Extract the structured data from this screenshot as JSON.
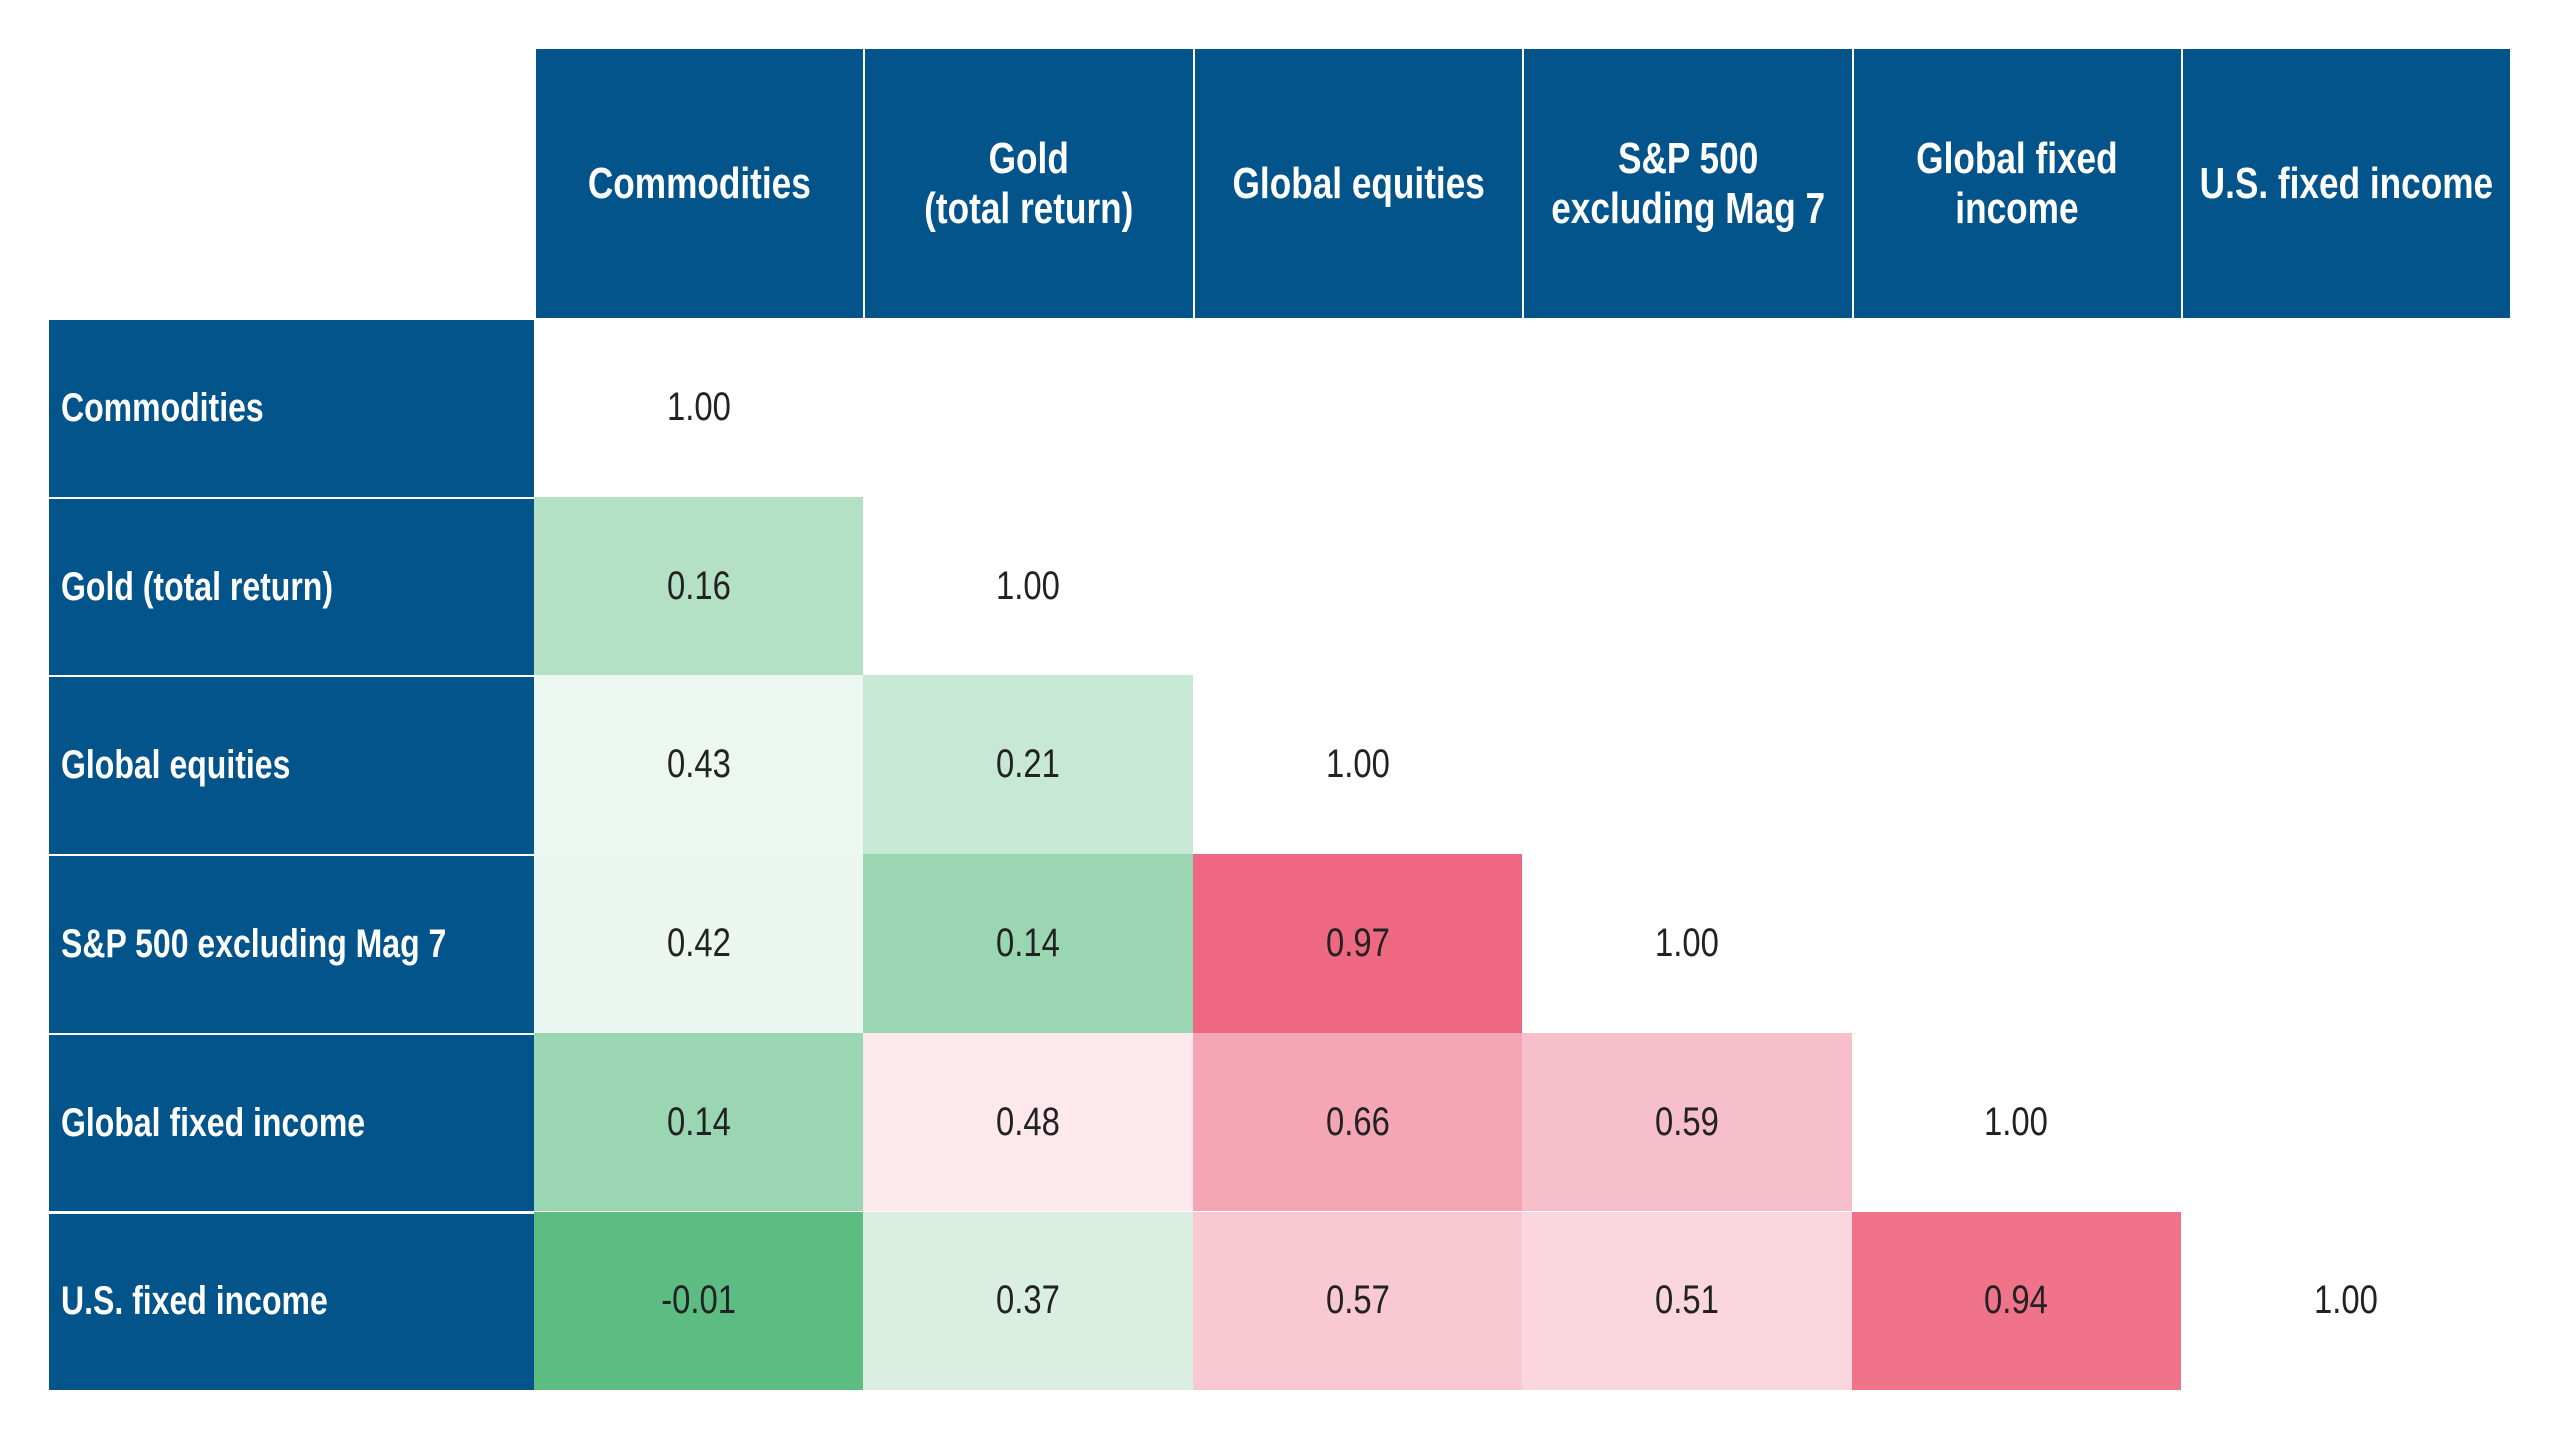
{
  "chart_data": {
    "type": "heatmap",
    "columns": [
      "Commodities",
      "Gold\n(total return)",
      "Global equities",
      "S&P 500\nexcluding Mag 7",
      "Global fixed\nincome",
      "U.S. fixed income"
    ],
    "rows": [
      "Commodities",
      "Gold (total return)",
      "Global equities",
      "S&P 500 excluding Mag 7",
      "Global fixed income",
      "U.S. fixed income"
    ],
    "values": [
      [
        1,
        null,
        null,
        null,
        null,
        null
      ],
      [
        0.16,
        1,
        null,
        null,
        null,
        null
      ],
      [
        0.43,
        0.21,
        1,
        null,
        null,
        null
      ],
      [
        0.42,
        0.14,
        0.97,
        1,
        null,
        null
      ],
      [
        0.14,
        0.48,
        0.66,
        0.59,
        1,
        null
      ],
      [
        -0.01,
        0.37,
        0.57,
        0.51,
        0.94,
        1
      ]
    ],
    "value_labels": [
      [
        "1.00",
        null,
        null,
        null,
        null,
        null
      ],
      [
        "0.16",
        "1.00",
        null,
        null,
        null,
        null
      ],
      [
        "0.43",
        "0.21",
        "1.00",
        null,
        null,
        null
      ],
      [
        "0.42",
        "0.14",
        "0.97",
        "1.00",
        null,
        null
      ],
      [
        "0.14",
        "0.48",
        "0.66",
        "0.59",
        "1.00",
        null
      ],
      [
        "-0.01",
        "0.37",
        "0.57",
        "0.51",
        "0.94",
        "1.00"
      ]
    ],
    "colors": [
      [
        "#ffffff",
        null,
        null,
        null,
        null,
        null
      ],
      [
        "#b4e0c6",
        "#ffffff",
        null,
        null,
        null,
        null
      ],
      [
        "#edf7f1",
        "#c6e8d4",
        "#ffffff",
        null,
        null,
        null
      ],
      [
        "#ecf6f0",
        "#9bd6b3",
        "#ef6881",
        "#ffffff",
        null,
        null
      ],
      [
        "#9bd6b3",
        "#fde9ed",
        "#f5a6b5",
        "#f7bfcb",
        "#ffffff",
        null
      ],
      [
        "#5cbc81",
        "#daefe2",
        "#f8c9d3",
        "#fad7de",
        "#f07389",
        "#ffffff"
      ]
    ],
    "header_color": "#03548a"
  }
}
